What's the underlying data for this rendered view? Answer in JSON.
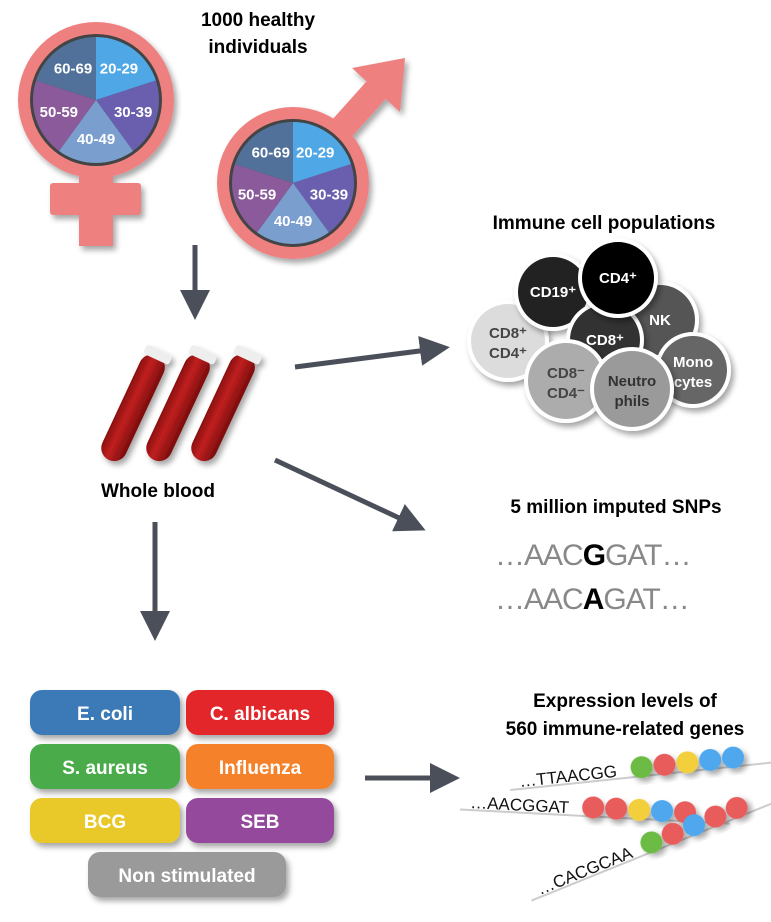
{
  "title": "1000 healthy individuals",
  "title_lines": [
    "1000 healthy",
    "individuals"
  ],
  "age_groups": [
    {
      "label": "20-29",
      "color": "#4fa7e6"
    },
    {
      "label": "30-39",
      "color": "#6a5fae"
    },
    {
      "label": "40-49",
      "color": "#7a9fcf"
    },
    {
      "label": "50-59",
      "color": "#8a5a9a"
    },
    {
      "label": "60-69",
      "color": "#51719a"
    }
  ],
  "symbol_color": "#ef8080",
  "whole_blood": "Whole blood",
  "immune": {
    "title": "Immune cell populations",
    "cells": [
      {
        "l1": "CD8⁺",
        "l2": "CD4⁺",
        "fill": "#dcdcdc",
        "text": "#444"
      },
      {
        "l1": "CD19⁺",
        "l2": "",
        "fill": "#222222",
        "text": "#fff"
      },
      {
        "l1": "NK",
        "l2": "",
        "fill": "#555555",
        "text": "#fff"
      },
      {
        "l1": "CD8⁺",
        "l2": "",
        "fill": "#333333",
        "text": "#fff"
      },
      {
        "l1": "CD4⁺",
        "l2": "",
        "fill": "#000000",
        "text": "#fff"
      },
      {
        "l1": "CD8⁻",
        "l2": "CD4⁻",
        "fill": "#acacac",
        "text": "#444"
      },
      {
        "l1": "Mono",
        "l2": "cytes",
        "fill": "#666666",
        "text": "#fff"
      },
      {
        "l1": "Neutro",
        "l2": "phils",
        "fill": "#9a9a9a",
        "text": "#333"
      }
    ]
  },
  "snps": {
    "title": "5 million imputed SNPs",
    "seq1": {
      "pre": "…AAC",
      "allele": "G",
      "post": "GAT…"
    },
    "seq2": {
      "pre": "…AAC",
      "allele": "A",
      "post": "GAT…"
    }
  },
  "stimuli": [
    {
      "label": "E. coli",
      "color": "#3a7ab7"
    },
    {
      "label": "C. albicans",
      "color": "#e2272b"
    },
    {
      "label": "S. aureus",
      "color": "#4aab48"
    },
    {
      "label": "Influenza",
      "color": "#f5822a"
    },
    {
      "label": "BCG",
      "color": "#e9c82c"
    },
    {
      "label": "SEB",
      "color": "#944a9c"
    },
    {
      "label": "Non stimulated",
      "color": "#9a9a9a"
    }
  ],
  "expression": {
    "title_lines": [
      "Expression levels of",
      "560 immune-related genes"
    ],
    "genes": [
      {
        "seq": "…TTAACGG",
        "beads": [
          "#6cbb45",
          "#e85c5c",
          "#f3cf3a",
          "#4fa7ee",
          "#4fa7ee"
        ]
      },
      {
        "seq": "…AACGGAT",
        "beads": [
          "#e85c5c",
          "#e85c5c",
          "#f3cf3a",
          "#4fa7ee",
          "#e85c5c"
        ]
      },
      {
        "seq": "…CACGCAA",
        "beads": [
          "#6cbb45",
          "#e85c5c",
          "#4fa7ee",
          "#e85c5c",
          "#e85c5c"
        ]
      }
    ]
  },
  "arrow_color": "#4a4f5a"
}
